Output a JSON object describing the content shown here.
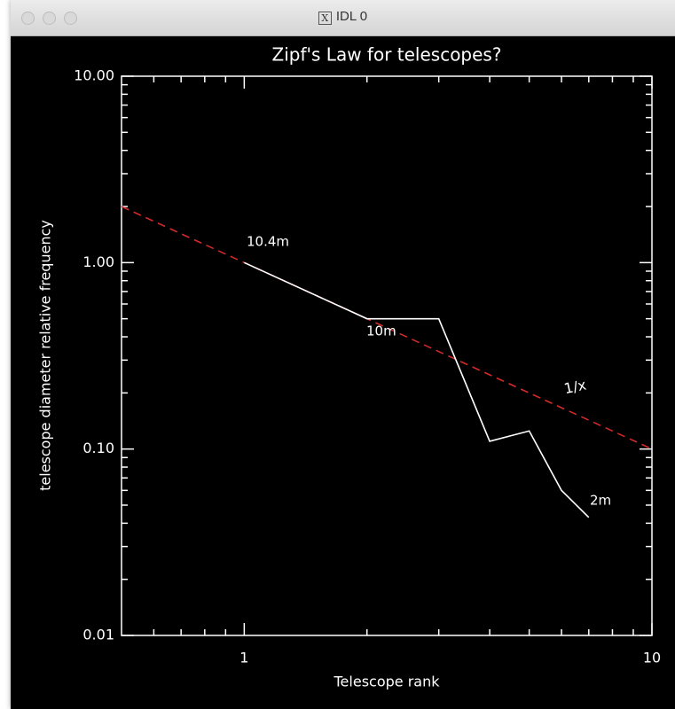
{
  "window_title": "IDL 0",
  "chart_data": {
    "type": "line",
    "title": "Zipf's Law for telescopes?",
    "x_label": "Telescope rank",
    "y_label": "telescope diameter relative frequency",
    "x": [
      1,
      2,
      3,
      4,
      5,
      6,
      7
    ],
    "values": [
      1,
      0.5,
      0.5,
      0.11,
      0.125,
      0.06,
      0.043
    ],
    "color": "#ffffff",
    "reference_line": {
      "label": "1/x",
      "x": [
        0.5,
        10
      ],
      "values": [
        2,
        0.1
      ],
      "color": "#d42a2a",
      "dashed": true
    },
    "annotations": [
      "10.4m",
      "10m",
      "2m"
    ],
    "xlog": true,
    "ylog": true,
    "xlim": [
      0.5,
      10
    ],
    "ylim": [
      0.01,
      10
    ],
    "xticks": [
      1,
      10
    ],
    "xminorticks": [
      0.6,
      0.7,
      0.8,
      0.9,
      2,
      3,
      4,
      5,
      6,
      7,
      8,
      9
    ],
    "yticks": [
      {
        "value": 0.01,
        "label": "0.01"
      },
      {
        "value": 0.1,
        "label": "0.10"
      },
      {
        "value": 1,
        "label": "1.00"
      },
      {
        "value": 10,
        "label": "10.00"
      }
    ],
    "yminorticks": [
      0.02,
      0.03,
      0.04,
      0.05,
      0.06,
      0.07,
      0.08,
      0.09,
      0.2,
      0.3,
      0.4,
      0.5,
      0.6,
      0.7,
      0.8,
      0.9,
      2,
      3,
      4,
      5,
      6,
      7,
      8,
      9
    ]
  }
}
